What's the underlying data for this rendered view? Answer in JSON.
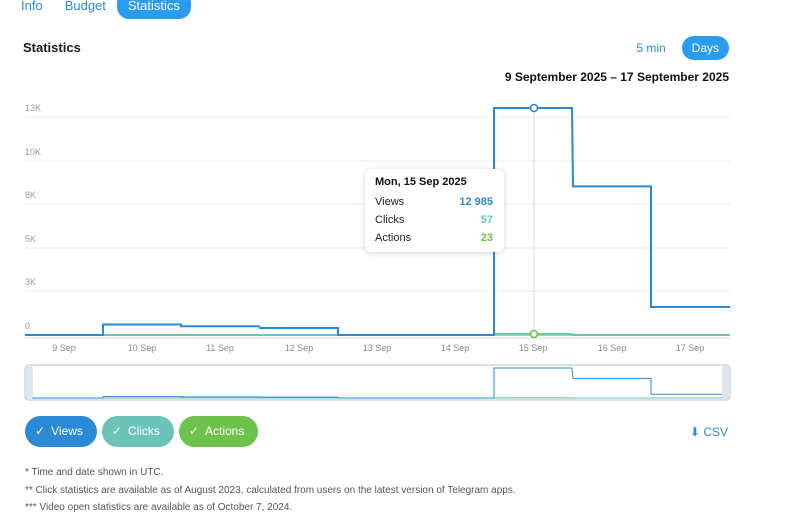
{
  "tabs": [
    {
      "label": "Info",
      "active": false
    },
    {
      "label": "Budget",
      "active": false
    },
    {
      "label": "Statistics",
      "active": true
    }
  ],
  "section_title": "Statistics",
  "period_options": [
    {
      "label": "5 min",
      "active": false
    },
    {
      "label": "Days",
      "active": true
    }
  ],
  "date_range": "9 September 2025 – 17 September 2025",
  "colors": {
    "views": "#2a8ad6",
    "clicks": "#6cc4b8",
    "actions": "#6cc24a",
    "accent": "#2a9cf0"
  },
  "chart_data": {
    "type": "line",
    "step": true,
    "x": [
      "9 Sep",
      "10 Sep",
      "11 Sep",
      "12 Sep",
      "13 Sep",
      "14 Sep",
      "15 Sep",
      "16 Sep",
      "17 Sep"
    ],
    "y_ticks": [
      "0",
      "3K",
      "5K",
      "8K",
      "10K",
      "13K"
    ],
    "series": [
      {
        "name": "Views",
        "values": [
          0,
          600,
          500,
          400,
          0,
          0,
          12985,
          8500,
          1600
        ]
      },
      {
        "name": "Clicks",
        "values": [
          0,
          0,
          0,
          0,
          0,
          0,
          57,
          0,
          0
        ]
      },
      {
        "name": "Actions",
        "values": [
          0,
          0,
          0,
          0,
          0,
          0,
          23,
          0,
          0
        ]
      }
    ],
    "grid": true
  },
  "tooltip": {
    "date": "Mon, 15 Sep 2025",
    "rows": [
      {
        "key": "Views",
        "value": "12 985"
      },
      {
        "key": "Clicks",
        "value": "57"
      },
      {
        "key": "Actions",
        "value": "23"
      }
    ]
  },
  "legend": [
    {
      "label": "Views",
      "checked": true
    },
    {
      "label": "Clicks",
      "checked": true
    },
    {
      "label": "Actions",
      "checked": true
    }
  ],
  "csv_label": "CSV",
  "footnotes": [
    "* Time and date shown in UTC.",
    "** Click statistics are available as of August 2023, calculated from users on the latest version of Telegram apps.",
    "*** Video open statistics are available as of October 7, 2024."
  ]
}
